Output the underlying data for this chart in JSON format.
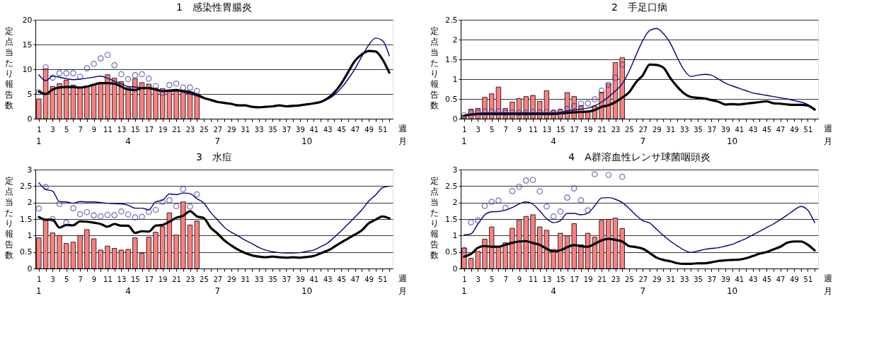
{
  "chart_data": [
    {
      "type": "bar",
      "title": "1　感染性胃腸炎",
      "ylabel": "定点当たり報告数",
      "xlabel": "週",
      "xlim": [
        0.5,
        52.5
      ],
      "xticks": [
        1,
        {
          "value": 2,
          "label": null
        },
        3,
        {
          "value": 4,
          "label": null
        },
        5,
        {
          "value": 6,
          "label": null
        },
        7,
        {
          "value": 8,
          "label": null
        },
        9,
        {
          "value": 10,
          "label": null
        },
        11,
        {
          "value": 12,
          "label": null
        },
        13,
        {
          "value": 14,
          "label": null
        },
        15,
        {
          "value": 16,
          "label": null
        },
        17,
        {
          "value": 18,
          "label": null
        },
        19,
        {
          "value": 20,
          "label": null
        },
        21,
        {
          "value": 22,
          "label": null
        },
        23,
        {
          "value": 24,
          "label": null
        },
        25,
        {
          "value": 26,
          "label": null
        },
        27,
        {
          "value": 28,
          "label": null
        },
        29,
        {
          "value": 30,
          "label": null
        },
        31,
        {
          "value": 32,
          "label": null
        },
        33,
        {
          "value": 34,
          "label": null
        },
        35,
        {
          "value": 36,
          "label": null
        },
        37,
        {
          "value": 38,
          "label": null
        },
        39,
        {
          "value": 40,
          "label": null
        },
        41,
        {
          "value": 42,
          "label": null
        },
        43,
        {
          "value": 44,
          "label": null
        },
        45,
        {
          "value": 46,
          "label": null
        },
        47,
        {
          "value": 48,
          "label": null
        },
        49,
        {
          "value": 50,
          "label": null
        },
        51,
        {
          "value": 52,
          "label": null
        }
      ],
      "annotations": [
        "1",
        "4",
        "7",
        "10",
        "月"
      ],
      "ylim": [
        0,
        20
      ],
      "yticks": [
        0,
        5,
        10,
        15,
        20
      ],
      "grid": "y",
      "series": [
        {
          "color": "#ff7f7f",
          "x": [
            1,
            2,
            3,
            4,
            5,
            6,
            7,
            8,
            9,
            10,
            11,
            12,
            13,
            14,
            15,
            16,
            17,
            18,
            19,
            20,
            21,
            22,
            23,
            24
          ],
          "values": [
            4.0,
            10.1,
            6.5,
            7.1,
            7.8,
            6.8,
            6.3,
            6.6,
            6.9,
            7.3,
            8.9,
            8.2,
            7.5,
            6.3,
            8.1,
            7.3,
            7.0,
            6.2,
            6.1,
            5.6,
            5.8,
            5.5,
            5.3,
            5.0
          ]
        },
        {
          "type": "scatter",
          "color": "#333399",
          "marker": "circle",
          "x": [
            1,
            2,
            3,
            4,
            5,
            6,
            7,
            8,
            9,
            10,
            11,
            12,
            13,
            14,
            15,
            16,
            17,
            18,
            19,
            20,
            21,
            22,
            23,
            24
          ],
          "values": [
            5.4,
            10.4,
            8.3,
            9.2,
            9.2,
            9.2,
            8.5,
            10.2,
            11.1,
            12.2,
            12.9,
            10.8,
            9.0,
            8.0,
            8.8,
            9.0,
            8.1,
            6.6,
            5.2,
            6.8,
            7.1,
            6.3,
            6.3,
            5.6
          ]
        },
        {
          "type": "line",
          "color": "#000080",
          "x": [
            1,
            2,
            3,
            4,
            5,
            6,
            7,
            8,
            9,
            10,
            11,
            12,
            13,
            14,
            15,
            16,
            17,
            18,
            19,
            20,
            21,
            22,
            23,
            24,
            25,
            26,
            27,
            28,
            29,
            30,
            31,
            32,
            33,
            34,
            35,
            36,
            37,
            38,
            39,
            40,
            41,
            42,
            43,
            44,
            45,
            46,
            47,
            48,
            49,
            50,
            51,
            52
          ],
          "values": [
            8.9,
            7.7,
            8.6,
            8.4,
            8.1,
            7.9,
            8.0,
            8.2,
            8.4,
            8.6,
            8.2,
            7.6,
            7.1,
            6.5,
            6.4,
            6.3,
            6.1,
            5.8,
            5.5,
            5.5,
            5.6,
            5.4,
            5.0,
            4.6,
            4.1,
            3.8,
            3.4,
            3.2,
            3.0,
            2.8,
            2.7,
            2.5,
            2.3,
            2.4,
            2.5,
            2.7,
            2.6,
            2.7,
            2.7,
            2.9,
            3.1,
            3.3,
            3.9,
            4.8,
            6.2,
            8.0,
            10.1,
            12.6,
            14.9,
            16.3,
            15.8,
            12.7
          ]
        },
        {
          "type": "line",
          "color": "#000000",
          "x": [
            1,
            2,
            3,
            4,
            5,
            6,
            7,
            8,
            9,
            10,
            11,
            12,
            13,
            14,
            15,
            16,
            17,
            18,
            19,
            20,
            21,
            22,
            23,
            24,
            25,
            26,
            27,
            28,
            29,
            30,
            31,
            32,
            33,
            34,
            35,
            36,
            37,
            38,
            39,
            40,
            41,
            42,
            43,
            44,
            45,
            46,
            47,
            48,
            49,
            50,
            51,
            52
          ],
          "values": [
            5.5,
            5.0,
            5.9,
            6.3,
            6.4,
            6.4,
            6.3,
            6.5,
            6.9,
            7.2,
            7.2,
            7.1,
            6.5,
            5.9,
            5.8,
            6.2,
            6.2,
            5.9,
            5.6,
            5.7,
            5.8,
            5.6,
            5.4,
            4.9,
            4.2,
            3.8,
            3.4,
            3.2,
            3.0,
            2.7,
            2.7,
            2.4,
            2.3,
            2.4,
            2.5,
            2.7,
            2.5,
            2.6,
            2.7,
            2.9,
            3.1,
            3.4,
            4.1,
            5.3,
            7.1,
            9.4,
            11.7,
            13.0,
            13.7,
            13.6,
            12.0,
            9.3
          ]
        }
      ]
    },
    {
      "type": "bar",
      "title": "2　手足口病",
      "ylabel": "定点当たり報告数",
      "xlabel": "週",
      "xlim": [
        0.5,
        52.5
      ],
      "xticks": [
        1,
        {
          "value": 2,
          "label": null
        },
        3,
        {
          "value": 4,
          "label": null
        },
        5,
        {
          "value": 6,
          "label": null
        },
        7,
        {
          "value": 8,
          "label": null
        },
        9,
        {
          "value": 10,
          "label": null
        },
        11,
        {
          "value": 12,
          "label": null
        },
        13,
        {
          "value": 14,
          "label": null
        },
        15,
        {
          "value": 16,
          "label": null
        },
        17,
        {
          "value": 18,
          "label": null
        },
        19,
        {
          "value": 20,
          "label": null
        },
        21,
        {
          "value": 22,
          "label": null
        },
        23,
        {
          "value": 24,
          "label": null
        },
        25,
        {
          "value": 26,
          "label": null
        },
        27,
        {
          "value": 28,
          "label": null
        },
        29,
        {
          "value": 30,
          "label": null
        },
        31,
        {
          "value": 32,
          "label": null
        },
        33,
        {
          "value": 34,
          "label": null
        },
        35,
        {
          "value": 36,
          "label": null
        },
        37,
        {
          "value": 38,
          "label": null
        },
        39,
        {
          "value": 40,
          "label": null
        },
        41,
        {
          "value": 42,
          "label": null
        },
        43,
        {
          "value": 44,
          "label": null
        },
        45,
        {
          "value": 46,
          "label": null
        },
        47,
        {
          "value": 48,
          "label": null
        },
        49,
        {
          "value": 50,
          "label": null
        },
        51,
        {
          "value": 52,
          "label": null
        }
      ],
      "annotations": [
        "1",
        "4",
        "7",
        "10",
        "月"
      ],
      "ylim": [
        0,
        2.5
      ],
      "yticks": [
        0,
        0.5,
        1,
        1.5,
        2,
        2.5
      ],
      "grid": "y",
      "series": [
        {
          "color": "#ff7f7f",
          "x": [
            1,
            2,
            3,
            4,
            5,
            6,
            7,
            8,
            9,
            10,
            11,
            12,
            13,
            14,
            15,
            16,
            17,
            18,
            19,
            20,
            21,
            22,
            23,
            24
          ],
          "values": [
            0.08,
            0.24,
            0.26,
            0.54,
            0.63,
            0.8,
            0.26,
            0.42,
            0.51,
            0.56,
            0.59,
            0.44,
            0.71,
            0.21,
            0.23,
            0.66,
            0.56,
            0.33,
            0.18,
            0.32,
            0.67,
            0.88,
            1.42,
            1.54
          ]
        },
        {
          "type": "scatter",
          "color": "#333399",
          "marker": "circle",
          "x": [
            1,
            2,
            3,
            4,
            5,
            6,
            7,
            8,
            9,
            10,
            11,
            12,
            13,
            14,
            15,
            16,
            17,
            18,
            19,
            20,
            21,
            22,
            23,
            24
          ],
          "values": [
            0.09,
            0.15,
            0.16,
            0.18,
            0.18,
            0.19,
            0.15,
            0.16,
            0.15,
            0.15,
            0.17,
            0.16,
            0.17,
            0.16,
            0.18,
            0.25,
            0.32,
            0.38,
            0.39,
            0.49,
            0.71,
            0.86,
            1.04,
            1.37
          ]
        },
        {
          "type": "line",
          "color": "#000080",
          "x": [
            1,
            2,
            3,
            4,
            5,
            6,
            7,
            8,
            9,
            10,
            11,
            12,
            13,
            14,
            15,
            16,
            17,
            18,
            19,
            20,
            21,
            22,
            23,
            24,
            25,
            26,
            27,
            28,
            29,
            30,
            31,
            32,
            33,
            34,
            35,
            36,
            37,
            38,
            39,
            40,
            41,
            42,
            43,
            44,
            45,
            46,
            47,
            48,
            49,
            50,
            51,
            52
          ],
          "values": [
            0.08,
            0.12,
            0.14,
            0.15,
            0.15,
            0.15,
            0.15,
            0.15,
            0.15,
            0.15,
            0.15,
            0.15,
            0.15,
            0.15,
            0.16,
            0.2,
            0.22,
            0.24,
            0.27,
            0.33,
            0.42,
            0.55,
            0.7,
            0.88,
            1.2,
            1.6,
            1.98,
            2.23,
            2.28,
            2.15,
            1.91,
            1.55,
            1.23,
            1.07,
            1.1,
            1.12,
            1.1,
            1.0,
            0.9,
            0.83,
            0.77,
            0.71,
            0.65,
            0.62,
            0.59,
            0.56,
            0.53,
            0.5,
            0.46,
            0.42,
            0.36,
            0.25
          ]
        },
        {
          "type": "line",
          "color": "#000000",
          "x": [
            1,
            2,
            3,
            4,
            5,
            6,
            7,
            8,
            9,
            10,
            11,
            12,
            13,
            14,
            15,
            16,
            17,
            18,
            19,
            20,
            21,
            22,
            23,
            24,
            25,
            26,
            27,
            28,
            29,
            30,
            31,
            32,
            33,
            34,
            35,
            36,
            37,
            38,
            39,
            40,
            41,
            42,
            43,
            44,
            45,
            46,
            47,
            48,
            49,
            50,
            51,
            52
          ],
          "values": [
            0.08,
            0.1,
            0.12,
            0.12,
            0.12,
            0.12,
            0.12,
            0.12,
            0.12,
            0.12,
            0.12,
            0.12,
            0.12,
            0.12,
            0.13,
            0.15,
            0.16,
            0.17,
            0.18,
            0.22,
            0.3,
            0.34,
            0.42,
            0.53,
            0.67,
            0.92,
            1.1,
            1.37,
            1.36,
            1.29,
            1.03,
            0.81,
            0.64,
            0.55,
            0.53,
            0.51,
            0.47,
            0.43,
            0.36,
            0.37,
            0.36,
            0.38,
            0.4,
            0.42,
            0.44,
            0.39,
            0.38,
            0.36,
            0.35,
            0.35,
            0.33,
            0.23
          ]
        }
      ]
    },
    {
      "type": "bar",
      "title": "3　水痘",
      "ylabel": "定点当たり報告数",
      "xlabel": "週",
      "xlim": [
        0.5,
        52.5
      ],
      "xticks": [
        1,
        {
          "value": 2,
          "label": null
        },
        3,
        {
          "value": 4,
          "label": null
        },
        5,
        {
          "value": 6,
          "label": null
        },
        7,
        {
          "value": 8,
          "label": null
        },
        9,
        {
          "value": 10,
          "label": null
        },
        11,
        {
          "value": 12,
          "label": null
        },
        13,
        {
          "value": 14,
          "label": null
        },
        15,
        {
          "value": 16,
          "label": null
        },
        17,
        {
          "value": 18,
          "label": null
        },
        19,
        {
          "value": 20,
          "label": null
        },
        21,
        {
          "value": 22,
          "label": null
        },
        23,
        {
          "value": 24,
          "label": null
        },
        25,
        {
          "value": 26,
          "label": null
        },
        27,
        {
          "value": 28,
          "label": null
        },
        29,
        {
          "value": 30,
          "label": null
        },
        31,
        {
          "value": 32,
          "label": null
        },
        33,
        {
          "value": 34,
          "label": null
        },
        35,
        {
          "value": 36,
          "label": null
        },
        37,
        {
          "value": 38,
          "label": null
        },
        39,
        {
          "value": 40,
          "label": null
        },
        41,
        {
          "value": 42,
          "label": null
        },
        43,
        {
          "value": 44,
          "label": null
        },
        45,
        {
          "value": 46,
          "label": null
        },
        47,
        {
          "value": 48,
          "label": null
        },
        49,
        {
          "value": 50,
          "label": null
        },
        51,
        {
          "value": 52,
          "label": null
        }
      ],
      "annotations": [
        "1",
        "4",
        "7",
        "10",
        "月"
      ],
      "ylim": [
        0,
        3
      ],
      "yticks": [
        0,
        0.5,
        1,
        1.5,
        2,
        2.5,
        3
      ],
      "grid": "y",
      "series": [
        {
          "color": "#ff7f7f",
          "x": [
            1,
            2,
            3,
            4,
            5,
            6,
            7,
            8,
            9,
            10,
            11,
            12,
            13,
            14,
            15,
            16,
            17,
            18,
            19,
            20,
            21,
            22,
            23,
            24
          ],
          "values": [
            0.93,
            1.46,
            1.08,
            1.0,
            0.76,
            0.8,
            1.0,
            1.18,
            0.9,
            0.56,
            0.68,
            0.61,
            0.56,
            0.58,
            0.93,
            0.46,
            0.95,
            1.1,
            1.27,
            1.69,
            1.02,
            2.02,
            1.32,
            1.44
          ]
        },
        {
          "type": "scatter",
          "color": "#333399",
          "marker": "circle",
          "x": [
            1,
            2,
            3,
            4,
            5,
            6,
            7,
            8,
            9,
            10,
            11,
            12,
            13,
            14,
            15,
            16,
            17,
            18,
            19,
            20,
            21,
            22,
            23,
            24
          ],
          "values": [
            1.82,
            2.47,
            1.5,
            1.96,
            1.39,
            1.83,
            1.65,
            1.71,
            1.61,
            1.58,
            1.63,
            1.62,
            1.73,
            1.64,
            1.55,
            1.57,
            1.72,
            1.78,
            2.02,
            2.07,
            1.89,
            2.41,
            1.88,
            2.25
          ]
        },
        {
          "type": "line",
          "color": "#000080",
          "x": [
            1,
            2,
            3,
            4,
            5,
            6,
            7,
            8,
            9,
            10,
            11,
            12,
            13,
            14,
            15,
            16,
            17,
            18,
            19,
            20,
            21,
            22,
            23,
            24,
            25,
            26,
            27,
            28,
            29,
            30,
            31,
            32,
            33,
            34,
            35,
            36,
            37,
            38,
            39,
            40,
            41,
            42,
            43,
            44,
            45,
            46,
            47,
            48,
            49,
            50,
            51,
            52
          ],
          "values": [
            2.6,
            2.4,
            2.35,
            2.03,
            2.02,
            1.98,
            2.03,
            2.02,
            2.02,
            2.0,
            1.98,
            1.97,
            1.96,
            1.92,
            1.83,
            1.83,
            1.78,
            2.02,
            2.07,
            2.26,
            2.24,
            2.29,
            2.27,
            2.12,
            1.99,
            1.7,
            1.48,
            1.25,
            1.1,
            0.99,
            0.86,
            0.76,
            0.64,
            0.56,
            0.51,
            0.48,
            0.47,
            0.47,
            0.48,
            0.52,
            0.56,
            0.66,
            0.77,
            0.95,
            1.14,
            1.35,
            1.56,
            1.78,
            2.04,
            2.23,
            2.45,
            2.5
          ]
        },
        {
          "type": "line",
          "color": "#000000",
          "x": [
            1,
            2,
            3,
            4,
            5,
            6,
            7,
            8,
            9,
            10,
            11,
            12,
            13,
            14,
            15,
            16,
            17,
            18,
            19,
            20,
            21,
            22,
            23,
            24,
            25,
            26,
            27,
            28,
            29,
            30,
            31,
            32,
            33,
            34,
            35,
            36,
            37,
            38,
            39,
            40,
            41,
            42,
            43,
            44,
            45,
            46,
            47,
            48,
            49,
            50,
            51,
            52
          ],
          "values": [
            1.56,
            1.48,
            1.48,
            1.24,
            1.32,
            1.31,
            1.43,
            1.42,
            1.39,
            1.35,
            1.27,
            1.35,
            1.3,
            1.3,
            1.08,
            1.13,
            1.12,
            1.3,
            1.32,
            1.42,
            1.54,
            1.6,
            1.74,
            1.58,
            1.53,
            1.24,
            1.06,
            0.85,
            0.7,
            0.57,
            0.47,
            0.4,
            0.36,
            0.34,
            0.36,
            0.34,
            0.33,
            0.34,
            0.33,
            0.35,
            0.38,
            0.46,
            0.54,
            0.66,
            0.79,
            0.91,
            1.03,
            1.16,
            1.37,
            1.48,
            1.58,
            1.52
          ]
        }
      ]
    },
    {
      "type": "bar",
      "title": "4　A群溶血性レンサ球菌咽頭炎",
      "ylabel": "定点当たり報告数",
      "xlabel": "週",
      "xlim": [
        0.5,
        52.5
      ],
      "xticks": [
        1,
        {
          "value": 2,
          "label": null
        },
        3,
        {
          "value": 4,
          "label": null
        },
        5,
        {
          "value": 6,
          "label": null
        },
        7,
        {
          "value": 8,
          "label": null
        },
        9,
        {
          "value": 10,
          "label": null
        },
        11,
        {
          "value": 12,
          "label": null
        },
        13,
        {
          "value": 14,
          "label": null
        },
        15,
        {
          "value": 16,
          "label": null
        },
        17,
        {
          "value": 18,
          "label": null
        },
        19,
        {
          "value": 20,
          "label": null
        },
        21,
        {
          "value": 22,
          "label": null
        },
        23,
        {
          "value": 24,
          "label": null
        },
        25,
        {
          "value": 26,
          "label": null
        },
        27,
        {
          "value": 28,
          "label": null
        },
        29,
        {
          "value": 30,
          "label": null
        },
        31,
        {
          "value": 32,
          "label": null
        },
        33,
        {
          "value": 34,
          "label": null
        },
        35,
        {
          "value": 36,
          "label": null
        },
        37,
        {
          "value": 38,
          "label": null
        },
        39,
        {
          "value": 40,
          "label": null
        },
        41,
        {
          "value": 42,
          "label": null
        },
        43,
        {
          "value": 44,
          "label": null
        },
        45,
        {
          "value": 46,
          "label": null
        },
        47,
        {
          "value": 48,
          "label": null
        },
        49,
        {
          "value": 50,
          "label": null
        },
        51,
        {
          "value": 52,
          "label": null
        }
      ],
      "annotations": [
        "1",
        "4",
        "7",
        "10",
        "月"
      ],
      "ylim": [
        0,
        3
      ],
      "yticks": [
        0,
        0.5,
        1,
        1.5,
        2,
        2.5,
        3
      ],
      "grid": "y",
      "series": [
        {
          "color": "#ff7f7f",
          "x": [
            1,
            2,
            3,
            4,
            5,
            6,
            7,
            8,
            9,
            10,
            11,
            12,
            13,
            14,
            15,
            16,
            17,
            18,
            19,
            20,
            21,
            22,
            23,
            24
          ],
          "values": [
            0.62,
            0.31,
            0.52,
            0.89,
            1.26,
            0.66,
            0.78,
            1.22,
            1.46,
            1.58,
            1.63,
            1.26,
            1.16,
            0.58,
            1.07,
            0.99,
            1.36,
            0.72,
            1.07,
            0.95,
            1.46,
            1.49,
            1.53,
            1.21
          ]
        },
        {
          "type": "scatter",
          "color": "#333399",
          "marker": "circle",
          "x": [
            1,
            2,
            3,
            4,
            5,
            6,
            7,
            8,
            9,
            10,
            11,
            12,
            13,
            14,
            15,
            16,
            17,
            18,
            19,
            20,
            21,
            22,
            23,
            24
          ],
          "values": [
            0.56,
            1.4,
            1.46,
            1.9,
            2.02,
            2.06,
            1.84,
            2.35,
            2.48,
            2.67,
            2.69,
            2.34,
            1.88,
            1.58,
            1.73,
            2.15,
            2.43,
            2.07,
            1.76,
            2.86,
            null,
            2.84,
            null,
            2.78
          ]
        },
        {
          "type": "line",
          "color": "#000080",
          "x": [
            1,
            2,
            3,
            4,
            5,
            6,
            7,
            8,
            9,
            10,
            11,
            12,
            13,
            14,
            15,
            16,
            17,
            18,
            19,
            20,
            21,
            22,
            23,
            24,
            25,
            26,
            27,
            28,
            29,
            30,
            31,
            32,
            33,
            34,
            35,
            36,
            37,
            38,
            39,
            40,
            41,
            42,
            43,
            44,
            45,
            46,
            47,
            48,
            49,
            50,
            51,
            52
          ],
          "values": [
            1.02,
            1.05,
            1.35,
            1.63,
            1.72,
            1.73,
            1.77,
            1.85,
            1.96,
            2.02,
            1.95,
            1.75,
            1.51,
            1.39,
            1.45,
            1.67,
            1.67,
            1.63,
            1.68,
            1.9,
            2.14,
            2.15,
            2.1,
            2.0,
            1.82,
            1.62,
            1.45,
            1.38,
            1.19,
            1.0,
            0.83,
            0.69,
            0.56,
            0.49,
            0.53,
            0.58,
            0.61,
            0.63,
            0.68,
            0.73,
            0.82,
            0.91,
            1.02,
            1.13,
            1.24,
            1.35,
            1.48,
            1.62,
            1.77,
            1.88,
            1.77,
            1.39
          ]
        },
        {
          "type": "line",
          "color": "#000000",
          "x": [
            1,
            2,
            3,
            4,
            5,
            6,
            7,
            8,
            9,
            10,
            11,
            12,
            13,
            14,
            15,
            16,
            17,
            18,
            19,
            20,
            21,
            22,
            23,
            24,
            25,
            26,
            27,
            28,
            29,
            30,
            31,
            32,
            33,
            34,
            35,
            36,
            37,
            38,
            39,
            40,
            41,
            42,
            43,
            44,
            45,
            46,
            47,
            48,
            49,
            50,
            51,
            52
          ],
          "values": [
            0.36,
            0.44,
            0.63,
            0.68,
            0.66,
            0.66,
            0.72,
            0.78,
            0.82,
            0.83,
            0.77,
            0.72,
            0.6,
            0.52,
            0.55,
            0.65,
            0.71,
            0.68,
            0.66,
            0.75,
            0.85,
            0.9,
            0.87,
            0.82,
            0.68,
            0.65,
            0.6,
            0.47,
            0.33,
            0.26,
            0.22,
            0.16,
            0.14,
            0.14,
            0.16,
            0.16,
            0.19,
            0.23,
            0.25,
            0.26,
            0.27,
            0.31,
            0.38,
            0.45,
            0.5,
            0.58,
            0.66,
            0.78,
            0.82,
            0.82,
            0.72,
            0.55
          ]
        }
      ]
    }
  ]
}
